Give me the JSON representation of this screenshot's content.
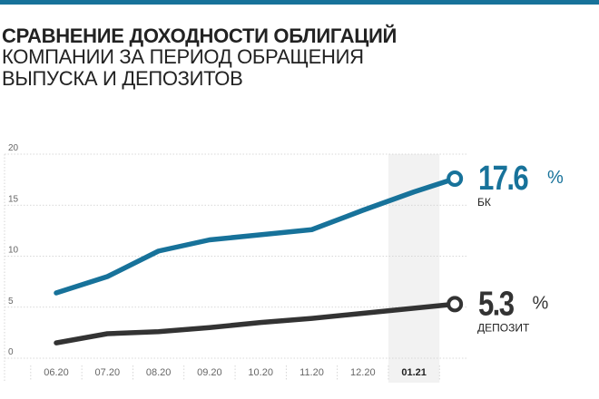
{
  "header": {
    "title": "СРАВНЕНИЕ ДОХОДНОСТИ ОБЛИГАЦИЙ",
    "subtitle": "КОМПАНИИ ЗА ПЕРИОД ОБРАЩЕНИЯ ВЫПУСКА И ДЕПОЗИТОВ"
  },
  "colors": {
    "accent": "#17729a",
    "dark": "#333333",
    "highlight_band": "#f2f2f2",
    "grid": "#cccccc",
    "tick": "#666666"
  },
  "chart_data": {
    "type": "line",
    "categories": [
      "06.20",
      "07.20",
      "08.20",
      "09.20",
      "10.20",
      "11.20",
      "12.20",
      "01.21"
    ],
    "highlight_category": "01.21",
    "ylim": [
      0,
      20
    ],
    "yticks": [
      0,
      5,
      10,
      15,
      20
    ],
    "grid": "horizontal",
    "series": [
      {
        "name": "БК",
        "color": "#17729a",
        "x": [
          0,
          1,
          2,
          3,
          4,
          5,
          6,
          7,
          7.8
        ],
        "values": [
          6.4,
          8.0,
          10.5,
          11.6,
          12.1,
          12.6,
          14.5,
          16.3,
          17.6
        ],
        "end_value": "17.6",
        "unit": "%"
      },
      {
        "name": "ДЕПОЗИТ",
        "color": "#333333",
        "x": [
          0,
          1,
          2,
          3,
          4,
          5,
          6,
          7,
          7.8
        ],
        "values": [
          1.5,
          2.4,
          2.6,
          3.0,
          3.5,
          3.9,
          4.4,
          4.9,
          5.3
        ],
        "end_value": "5.3",
        "unit": "%"
      }
    ]
  }
}
